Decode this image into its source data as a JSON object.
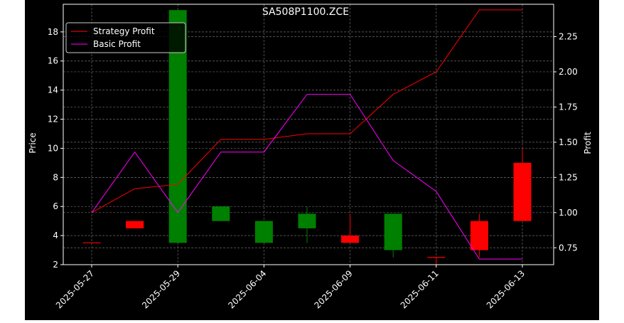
{
  "chart_data": {
    "type": "candlestick+line",
    "title": "SA508P1100.ZCE",
    "ylabel_left": "Price",
    "ylabel_right": "Profit",
    "xlabel": "",
    "ylim_left": [
      2,
      19.9
    ],
    "ylim_right": [
      0.63,
      2.48
    ],
    "left_ticks": [
      2,
      4,
      6,
      8,
      10,
      12,
      14,
      16,
      18
    ],
    "right_ticks": [
      "0.75",
      "1.00",
      "1.25",
      "1.50",
      "1.75",
      "2.00",
      "2.25"
    ],
    "x_tick_labels": [
      {
        "index": 0,
        "label": "2025-05-27"
      },
      {
        "index": 2,
        "label": "2025-05-29"
      },
      {
        "index": 4,
        "label": "2025-06-04"
      },
      {
        "index": 6,
        "label": "2025-06-09"
      },
      {
        "index": 8,
        "label": "2025-06-11"
      },
      {
        "index": 10,
        "label": "2025-06-13"
      }
    ],
    "grid": true,
    "legend_position": "top-left",
    "candles": [
      {
        "i": 0,
        "open": 3.5,
        "close": 3.5,
        "high": 3.5,
        "low": 3.5,
        "color": "#ff0000"
      },
      {
        "i": 1,
        "open": 5.0,
        "close": 4.5,
        "high": 5.0,
        "low": 4.5,
        "color": "#ff0000"
      },
      {
        "i": 2,
        "open": 3.5,
        "close": 19.5,
        "high": 19.5,
        "low": 3.5,
        "color": "#008000"
      },
      {
        "i": 3,
        "open": 5.0,
        "close": 6.0,
        "high": 6.0,
        "low": 5.0,
        "color": "#008000"
      },
      {
        "i": 4,
        "open": 3.5,
        "close": 5.0,
        "high": 5.0,
        "low": 3.5,
        "color": "#008000"
      },
      {
        "i": 5,
        "open": 4.5,
        "close": 5.5,
        "high": 6.0,
        "low": 3.5,
        "color": "#008000"
      },
      {
        "i": 6,
        "open": 4.0,
        "close": 3.5,
        "high": 5.5,
        "low": 3.5,
        "color": "#ff0000"
      },
      {
        "i": 7,
        "open": 3.0,
        "close": 5.5,
        "high": 5.5,
        "low": 2.5,
        "color": "#008000"
      },
      {
        "i": 8,
        "open": 2.5,
        "close": 2.5,
        "high": 2.5,
        "low": 1.8,
        "color": "#ff0000"
      },
      {
        "i": 9,
        "open": 5.0,
        "close": 3.0,
        "high": 5.5,
        "low": 2.5,
        "color": "#ff0000"
      },
      {
        "i": 10,
        "open": 9.0,
        "close": 5.0,
        "high": 10.0,
        "low": 5.0,
        "color": "#ff0000"
      }
    ],
    "series": [
      {
        "name": "Strategy Profit",
        "color": "#ff0000",
        "points": [
          [
            0,
            1.0
          ],
          [
            1,
            1.17
          ],
          [
            2,
            1.2
          ],
          [
            3,
            1.52
          ],
          [
            4,
            1.52
          ],
          [
            5,
            1.56
          ],
          [
            6,
            1.56
          ],
          [
            7,
            1.84
          ],
          [
            8,
            2.0
          ],
          [
            9,
            2.44
          ],
          [
            10,
            2.44
          ]
        ]
      },
      {
        "name": "Basic Profit",
        "color": "#ff00ff",
        "points": [
          [
            0,
            1.0
          ],
          [
            1,
            1.43
          ],
          [
            2,
            1.0
          ],
          [
            3,
            1.43
          ],
          [
            4,
            1.43
          ],
          [
            5,
            1.84
          ],
          [
            6,
            1.84
          ],
          [
            7,
            1.37
          ],
          [
            8,
            1.15
          ],
          [
            9,
            0.67
          ],
          [
            10,
            0.67
          ]
        ]
      }
    ]
  }
}
